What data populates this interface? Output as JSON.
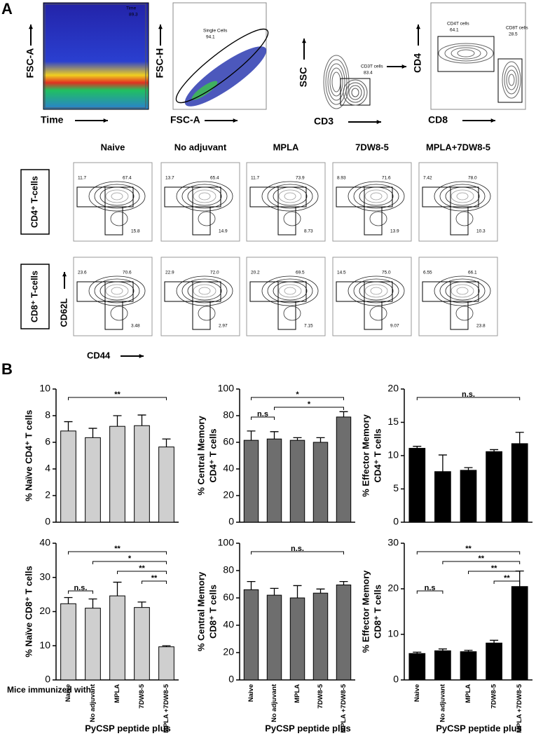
{
  "panel_a": {
    "label": "A",
    "gating": [
      {
        "y_label": "FSC-A",
        "x_label": "Time",
        "gates": [
          {
            "name": "Time",
            "value": "89.3"
          }
        ]
      },
      {
        "y_label": "FSC-H",
        "x_label": "FSC-A",
        "gates": [
          {
            "name": "Single Cells",
            "value": "94.1"
          }
        ]
      },
      {
        "y_label": "SSC",
        "x_label": "CD3",
        "gates": [
          {
            "name": "CD3T cells",
            "value": "83.4"
          }
        ]
      },
      {
        "y_label": "CD4",
        "x_label": "CD8",
        "gates": [
          {
            "name": "CD4T cells",
            "value": "64.1"
          },
          {
            "name": "CD8T cells",
            "value": "28.5"
          }
        ]
      }
    ],
    "columns": [
      "Naive",
      "No adjuvant",
      "MPLA",
      "7DW8-5",
      "MPLA+7DW8-5"
    ],
    "rows": [
      {
        "label": "CD4⁺ T-cells",
        "plots": [
          [
            "11.7",
            "67.4",
            "15.8"
          ],
          [
            "13.7",
            "65.4",
            "14.9"
          ],
          [
            "11.7",
            "73.9",
            "8.73"
          ],
          [
            "8.93",
            "71.6",
            "13.9"
          ],
          [
            "7.42",
            "78.0",
            "10.3"
          ]
        ]
      },
      {
        "label": "CD8⁺ T-cells",
        "plots": [
          [
            "23.6",
            "70.6",
            "3.48"
          ],
          [
            "22.9",
            "72.0",
            "2.97"
          ],
          [
            "20.2",
            "69.5",
            "7.15"
          ],
          [
            "14.5",
            "75.0",
            "9.07"
          ],
          [
            "6.55",
            "66.1",
            "23.8"
          ]
        ]
      }
    ],
    "y_label": "CD62L",
    "x_label": "CD44"
  },
  "panel_b": {
    "label": "B",
    "row_title": "Mice immunized with"
  },
  "chart_data": [
    {
      "type": "bar",
      "y_label": [
        "% Naïve CD4⁺ T cells"
      ],
      "values": [
        6.85,
        6.35,
        7.2,
        7.25,
        5.65
      ],
      "errors": [
        0.7,
        0.7,
        0.8,
        0.8,
        0.6
      ],
      "color": "#cfcfcf",
      "ylim": [
        0,
        10
      ],
      "yticks": [
        0,
        2,
        4,
        6,
        8,
        10
      ],
      "significance": [
        {
          "from": 0,
          "to": 4,
          "label": "**"
        }
      ]
    },
    {
      "type": "bar",
      "y_label": [
        "% Central Memory",
        "CD4⁺ T cells"
      ],
      "values": [
        61.5,
        62.5,
        61.5,
        60,
        79
      ],
      "errors": [
        7,
        5.5,
        2,
        3.5,
        4
      ],
      "color": "#6e6e6e",
      "ylim": [
        0,
        100
      ],
      "yticks": [
        0,
        20,
        40,
        60,
        80,
        100
      ],
      "significance": [
        {
          "from": 0,
          "to": 4,
          "label": "*"
        },
        {
          "from": 1,
          "to": 4,
          "label": "*"
        },
        {
          "from": 0,
          "to": 1,
          "label": "n.s"
        }
      ]
    },
    {
      "type": "bar",
      "y_label": [
        "% Effector Memory",
        "CD4⁺ T cells"
      ],
      "values": [
        11.1,
        7.6,
        7.8,
        10.6,
        11.8
      ],
      "errors": [
        0.3,
        2.5,
        0.4,
        0.3,
        1.7
      ],
      "color": "#000000",
      "ylim": [
        0,
        20
      ],
      "yticks": [
        0,
        5,
        10,
        15,
        20
      ],
      "significance": [
        {
          "from": 0,
          "to": 4,
          "label": "n.s."
        }
      ]
    },
    {
      "type": "bar",
      "y_label": [
        "% Naïve CD8⁺ T cells"
      ],
      "values": [
        22.3,
        21,
        24.6,
        21.2,
        9.7
      ],
      "errors": [
        1.8,
        2.7,
        4,
        1.6,
        0.3
      ],
      "color": "#cfcfcf",
      "ylim": [
        0,
        40
      ],
      "yticks": [
        0,
        10,
        20,
        30,
        40
      ],
      "categories": [
        "Naive",
        "No adjuvant",
        "MPLA",
        "7DW8-5",
        "MPLA +7DW8-5"
      ],
      "x_label": "PyCSP peptide plus",
      "significance": [
        {
          "from": 0,
          "to": 4,
          "label": "**"
        },
        {
          "from": 1,
          "to": 4,
          "label": "*"
        },
        {
          "from": 2,
          "to": 4,
          "label": "**"
        },
        {
          "from": 3,
          "to": 4,
          "label": "**"
        },
        {
          "from": 0,
          "to": 1,
          "label": "n.s."
        }
      ]
    },
    {
      "type": "bar",
      "y_label": [
        "% Central Memory",
        "CD8⁺ T cells"
      ],
      "values": [
        66,
        62,
        60,
        63.5,
        69.5
      ],
      "errors": [
        6,
        5,
        9,
        3,
        2.5
      ],
      "color": "#6e6e6e",
      "ylim": [
        0,
        100
      ],
      "yticks": [
        0,
        20,
        40,
        60,
        80,
        100
      ],
      "categories": [
        "Naive",
        "No adjuvant",
        "MPLA",
        "7DW8-5",
        "MPLA +7DW8-5"
      ],
      "x_label": "PyCSP peptide plus",
      "significance": [
        {
          "from": 0,
          "to": 4,
          "label": "n.s."
        }
      ]
    },
    {
      "type": "bar",
      "y_label": [
        "% Effector Memory",
        "CD8⁺ T cells"
      ],
      "values": [
        5.8,
        6.4,
        6.2,
        8.1,
        20.5
      ],
      "errors": [
        0.3,
        0.4,
        0.3,
        0.6,
        3.4
      ],
      "color": "#000000",
      "ylim": [
        0,
        30
      ],
      "yticks": [
        0,
        10,
        20,
        30
      ],
      "categories": [
        "Naive",
        "No adjuvant",
        "MPLA",
        "7DW8-5",
        "MPLA +7DW8-5"
      ],
      "x_label": "PyCSP peptide plus",
      "significance": [
        {
          "from": 0,
          "to": 4,
          "label": "**"
        },
        {
          "from": 1,
          "to": 4,
          "label": "**"
        },
        {
          "from": 2,
          "to": 4,
          "label": "**"
        },
        {
          "from": 3,
          "to": 4,
          "label": "**"
        },
        {
          "from": 0,
          "to": 1,
          "label": "n.s"
        }
      ]
    }
  ]
}
